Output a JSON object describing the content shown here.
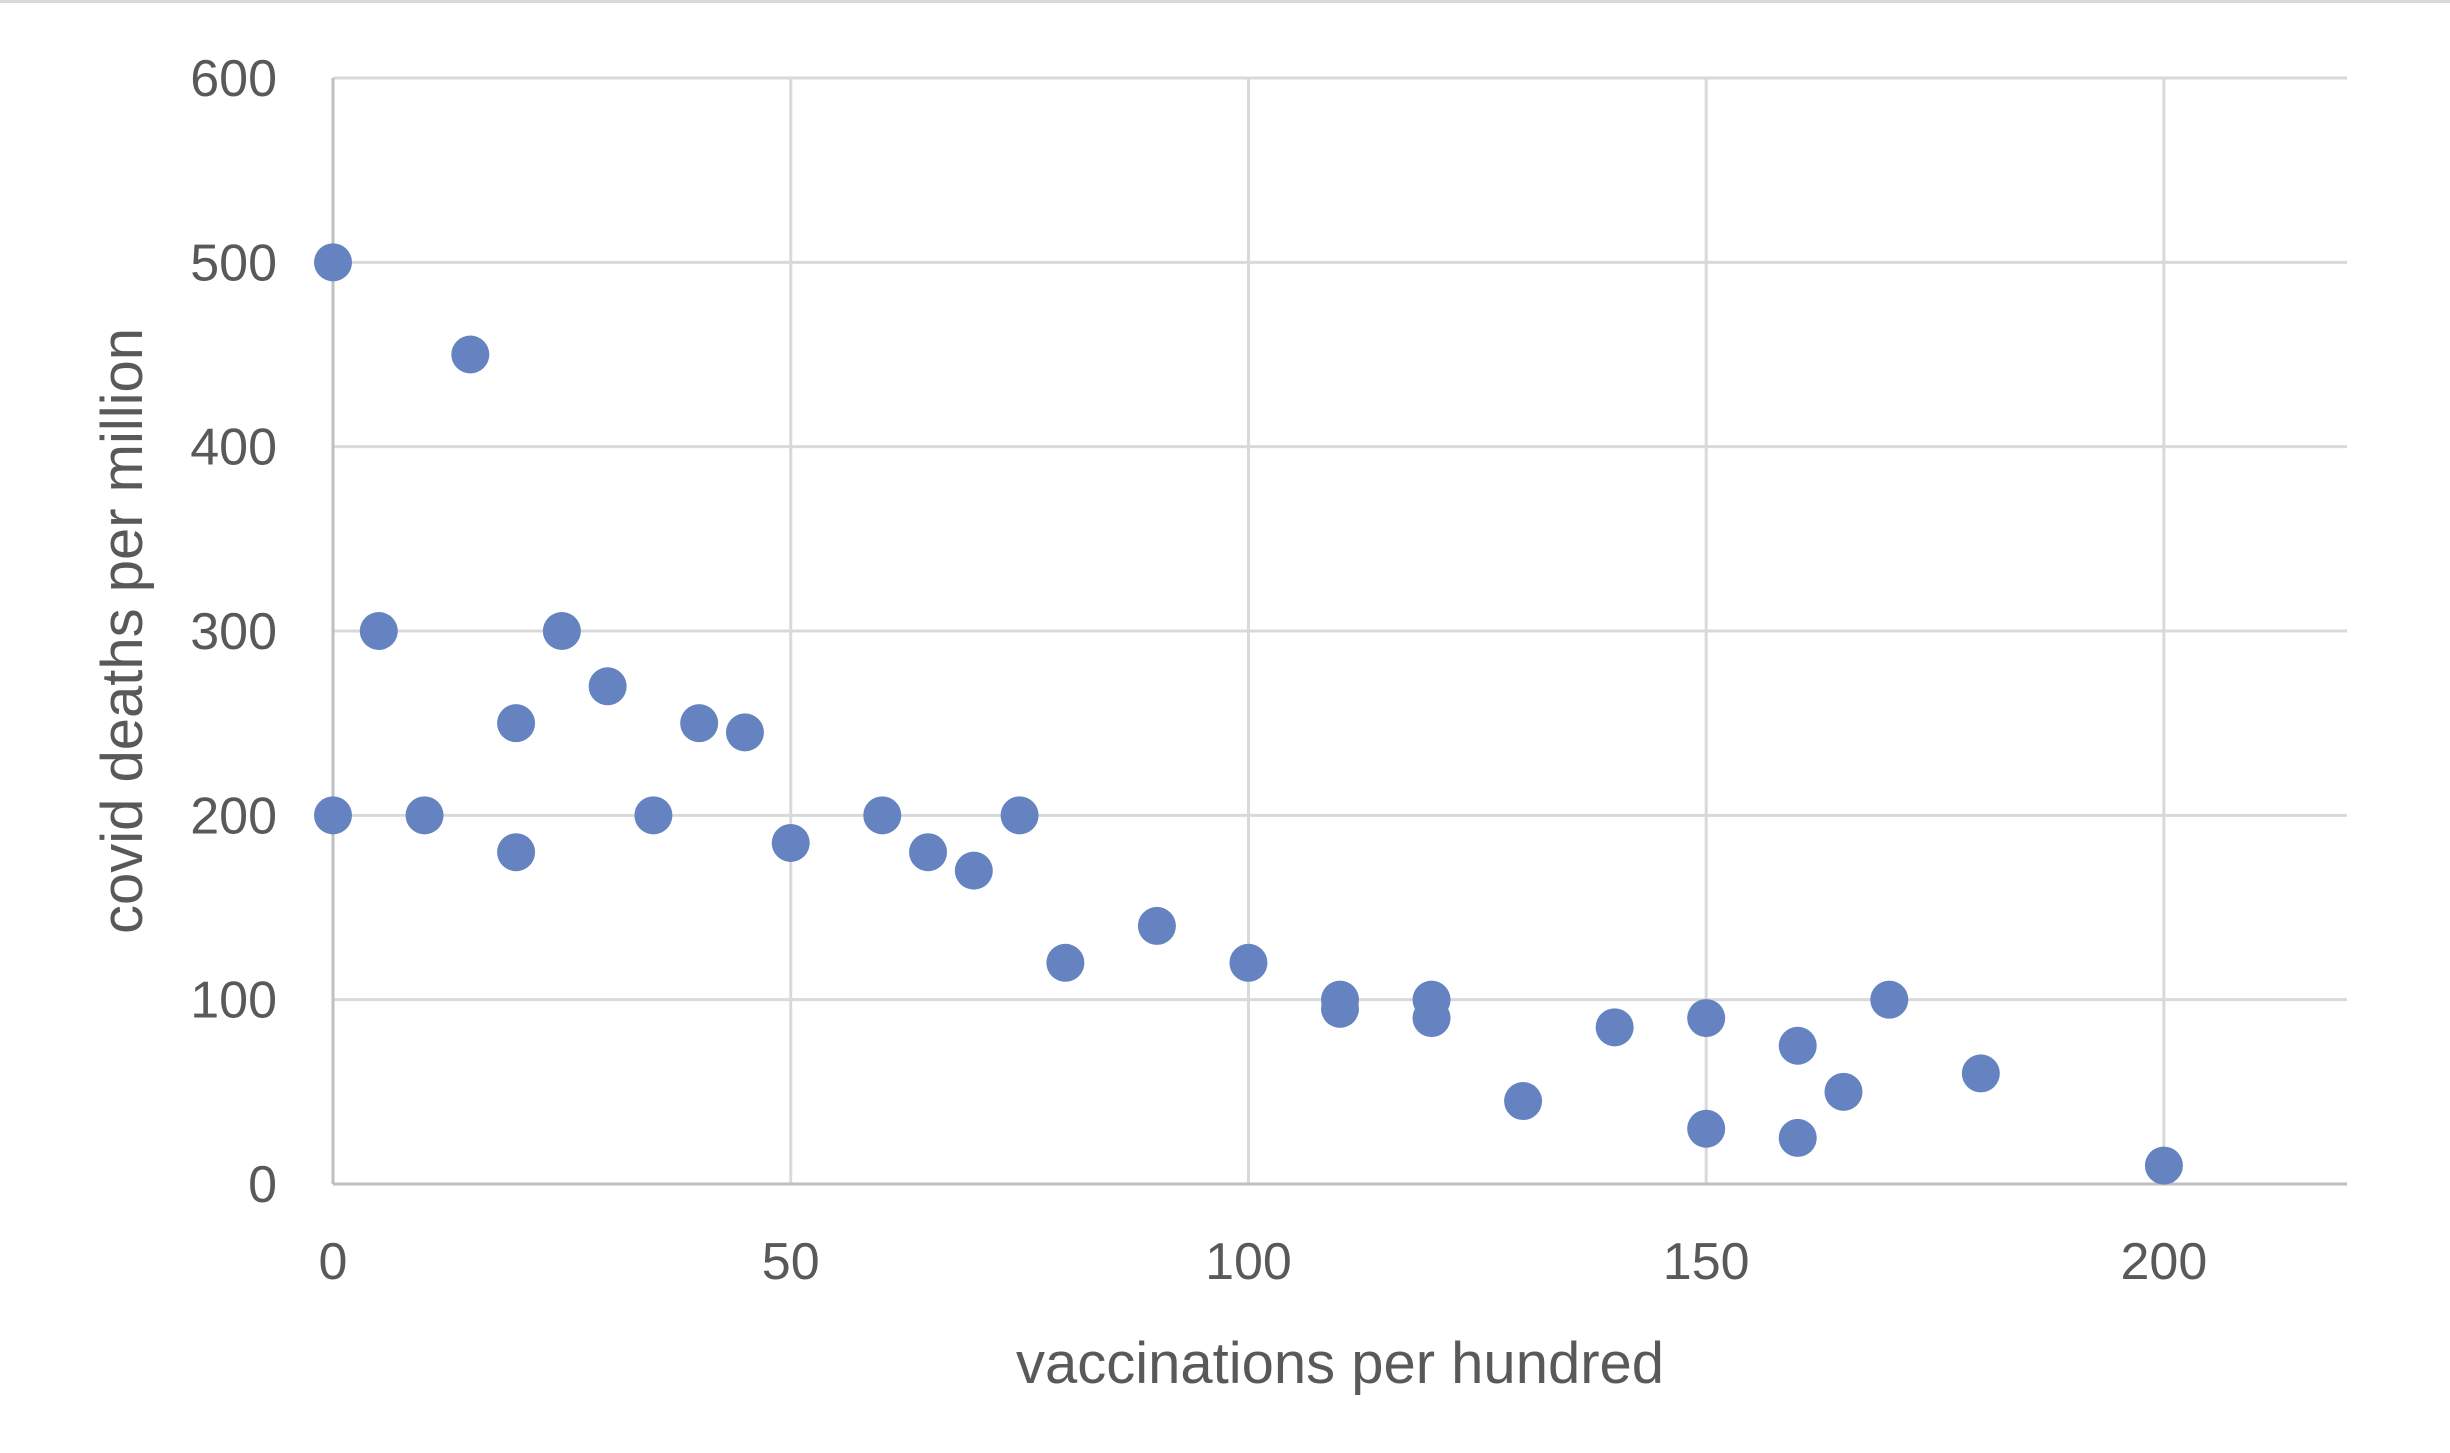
{
  "chart_data": {
    "type": "scatter",
    "title": "",
    "xlabel": "vaccinations per hundred",
    "ylabel": "covid deaths per million",
    "xlim": [
      0,
      220
    ],
    "ylim": [
      0,
      600
    ],
    "x_ticks": [
      0,
      50,
      100,
      150,
      200
    ],
    "y_ticks": [
      0,
      100,
      200,
      300,
      400,
      500,
      600
    ],
    "x_tick_labels": [
      "0",
      "50",
      "100",
      "150",
      "200"
    ],
    "y_tick_labels": [
      "0",
      "100",
      "200",
      "300",
      "400",
      "500",
      "600"
    ],
    "grid": true,
    "legend": "none",
    "marker_color": "#6583c1",
    "series": [
      {
        "points": [
          {
            "x": 0,
            "y": 500
          },
          {
            "x": 0,
            "y": 200
          },
          {
            "x": 5,
            "y": 300
          },
          {
            "x": 10,
            "y": 200
          },
          {
            "x": 15,
            "y": 450
          },
          {
            "x": 20,
            "y": 250
          },
          {
            "x": 20,
            "y": 180
          },
          {
            "x": 25,
            "y": 300
          },
          {
            "x": 30,
            "y": 270
          },
          {
            "x": 35,
            "y": 200
          },
          {
            "x": 40,
            "y": 250
          },
          {
            "x": 45,
            "y": 245
          },
          {
            "x": 50,
            "y": 185
          },
          {
            "x": 60,
            "y": 200
          },
          {
            "x": 65,
            "y": 180
          },
          {
            "x": 70,
            "y": 170
          },
          {
            "x": 75,
            "y": 200
          },
          {
            "x": 80,
            "y": 120
          },
          {
            "x": 90,
            "y": 140
          },
          {
            "x": 100,
            "y": 120
          },
          {
            "x": 110,
            "y": 100
          },
          {
            "x": 110,
            "y": 95
          },
          {
            "x": 120,
            "y": 100
          },
          {
            "x": 120,
            "y": 90
          },
          {
            "x": 130,
            "y": 45
          },
          {
            "x": 140,
            "y": 85
          },
          {
            "x": 150,
            "y": 90
          },
          {
            "x": 150,
            "y": 30
          },
          {
            "x": 160,
            "y": 75
          },
          {
            "x": 160,
            "y": 25
          },
          {
            "x": 165,
            "y": 50
          },
          {
            "x": 170,
            "y": 100
          },
          {
            "x": 180,
            "y": 60
          },
          {
            "x": 200,
            "y": 10
          }
        ]
      }
    ]
  }
}
